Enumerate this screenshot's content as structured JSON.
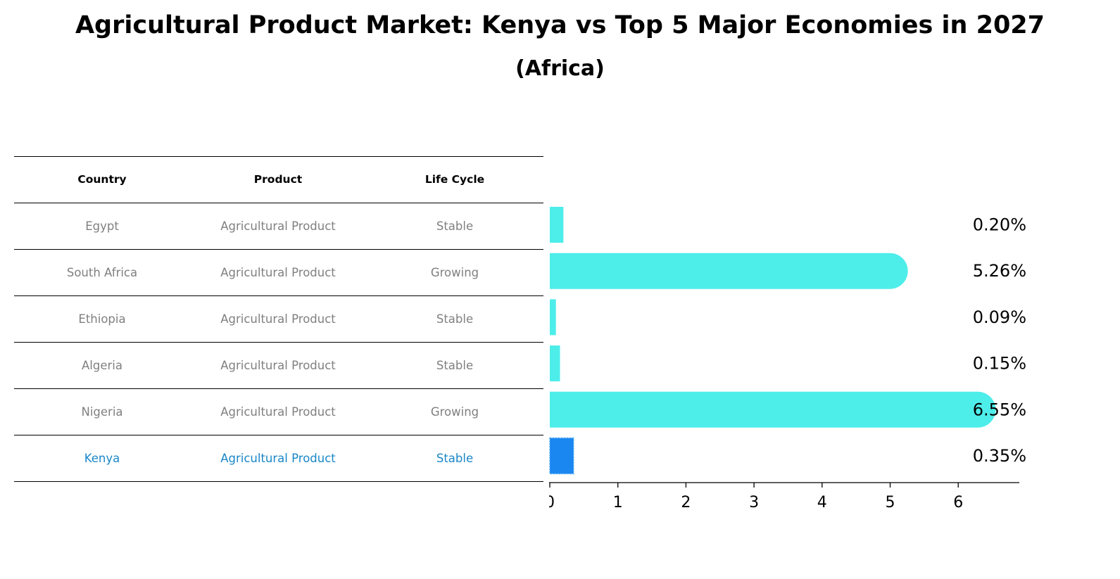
{
  "chart_data": {
    "type": "bar",
    "title": "Agricultural Product Market: Kenya vs Top 5 Major Economies in 2027",
    "subtitle": "(Africa)",
    "table_headers": [
      "Country",
      "Product",
      "Life Cycle"
    ],
    "rows": [
      {
        "country": "Egypt",
        "product": "Agricultural Product",
        "life_cycle": "Stable",
        "value": 0.2,
        "label": "0.20%",
        "highlight": false
      },
      {
        "country": "South Africa",
        "product": "Agricultural Product",
        "life_cycle": "Growing",
        "value": 5.26,
        "label": "5.26%",
        "highlight": false
      },
      {
        "country": "Ethiopia",
        "product": "Agricultural Product",
        "life_cycle": "Stable",
        "value": 0.09,
        "label": "0.09%",
        "highlight": false
      },
      {
        "country": "Algeria",
        "product": "Agricultural Product",
        "life_cycle": "Stable",
        "value": 0.15,
        "label": "0.15%",
        "highlight": false
      },
      {
        "country": "Nigeria",
        "product": "Agricultural Product",
        "life_cycle": "Growing",
        "value": 6.55,
        "label": "6.55%",
        "highlight": false
      },
      {
        "country": "Kenya",
        "product": "Agricultural Product",
        "life_cycle": "Stable",
        "value": 0.35,
        "label": "0.35%",
        "highlight": true
      }
    ],
    "x_ticks": [
      "0",
      "1",
      "2",
      "3",
      "4",
      "5",
      "6"
    ],
    "xlim": [
      0,
      6.9
    ],
    "colors": {
      "bar": "#4dedea",
      "highlight": "#1a87f0",
      "highlight_text": "#1a87c8",
      "text": "#808080"
    }
  }
}
